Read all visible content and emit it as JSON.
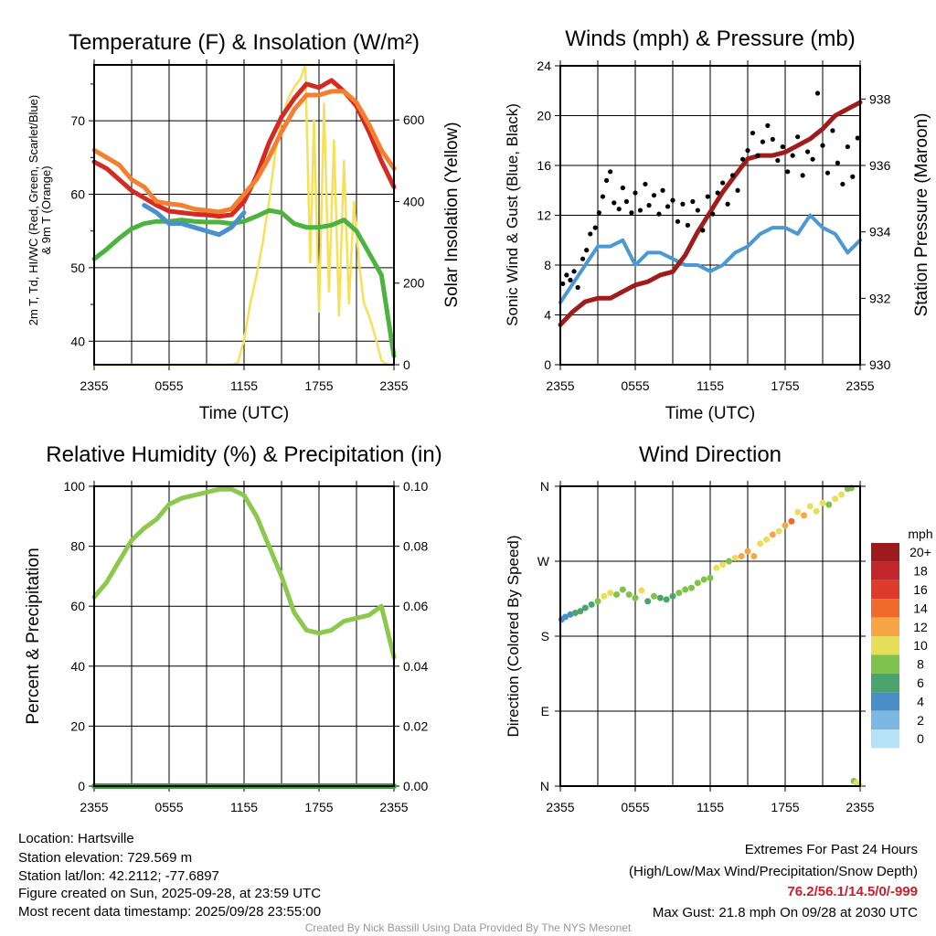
{
  "chart_data": [
    {
      "type": "line",
      "title": "Temperature (F) & Insolation (W/m²)",
      "xlabel": "Time (UTC)",
      "ylabel": "2m T, Td, HI/WC (Red, Green, Scarlet/Blue)",
      "ylabel2": "& 9m T (Orange)",
      "y2label": "Solar Insolation (Yellow)",
      "xticks": [
        "2355",
        "0555",
        "1155",
        "1755",
        "2355"
      ],
      "yticks": [
        70,
        60,
        50,
        40
      ],
      "y2ticks": [
        600,
        400,
        200,
        0
      ],
      "ylim": [
        36.8,
        77.6
      ],
      "y2lim": [
        0,
        735
      ],
      "x_hours": [
        0,
        1,
        2,
        3,
        4,
        5,
        6,
        7,
        8,
        9,
        10,
        11,
        12,
        13,
        14,
        15,
        16,
        17,
        18,
        19,
        20,
        21,
        22,
        23,
        24
      ],
      "series": [
        {
          "name": "2m T",
          "color": "#d42a24",
          "values": [
            64.4,
            63.5,
            62,
            60.5,
            59.5,
            58.5,
            57.7,
            57.5,
            57.3,
            57.2,
            57,
            57.2,
            59,
            62.5,
            67,
            70.5,
            73,
            75,
            74.5,
            75.5,
            74,
            72,
            68.5,
            64.5,
            61
          ]
        },
        {
          "name": "9m T",
          "color": "#f47f2f",
          "values": [
            66,
            65,
            64,
            62,
            61,
            59,
            58.7,
            58.5,
            58,
            57.8,
            57.6,
            58,
            60,
            62,
            65,
            68.5,
            71.5,
            73.5,
            73.5,
            74,
            74,
            72.5,
            69.5,
            66,
            63.5
          ]
        },
        {
          "name": "Td",
          "color": "#4cb33e",
          "values": [
            51.2,
            52.5,
            54,
            55.3,
            56,
            56.3,
            56.3,
            56.5,
            56.3,
            56.2,
            56.2,
            56,
            56.3,
            57,
            57.8,
            57.5,
            56,
            55.5,
            55.5,
            55.8,
            56.5,
            55,
            52,
            49,
            38
          ]
        },
        {
          "name": "HI/WC",
          "color": "#4a90cc",
          "values": [
            null,
            null,
            null,
            null,
            58.5,
            57.5,
            56,
            56,
            55.5,
            55,
            54.5,
            55.5,
            57.5,
            null,
            null,
            null,
            null,
            null,
            null,
            null,
            null,
            null,
            null,
            null,
            null
          ]
        }
      ],
      "solar": {
        "name": "Solar Insolation",
        "color": "#f6e05a",
        "x_hours": [
          0,
          11,
          11.5,
          12,
          12.5,
          13,
          13.5,
          14,
          14.5,
          15,
          15.5,
          16,
          16.5,
          16.9,
          17.3,
          17.6,
          18,
          18.4,
          18.8,
          19.2,
          19.6,
          20,
          20.4,
          20.8,
          21.2,
          21.6,
          22,
          22.5,
          23,
          23.5,
          24
        ],
        "values": [
          0,
          0,
          5,
          60,
          150,
          220,
          300,
          400,
          520,
          600,
          650,
          680,
          700,
          735,
          250,
          600,
          130,
          640,
          180,
          550,
          120,
          500,
          150,
          400,
          250,
          150,
          120,
          70,
          10,
          0,
          0
        ]
      }
    },
    {
      "type": "line",
      "title": "Winds (mph) & Pressure (mb)",
      "xlabel": "Time (UTC)",
      "ylabel": "Sonic Wind & Gust (Blue, Black)",
      "y2label": "Station Pressure (Maroon)",
      "xticks": [
        "2355",
        "0555",
        "1155",
        "1755",
        "2355"
      ],
      "yticks": [
        0,
        4,
        8,
        12,
        16,
        20,
        24
      ],
      "y2ticks": [
        930,
        932,
        934,
        936,
        938
      ],
      "ylim": [
        0,
        24
      ],
      "y2lim": [
        930,
        939
      ],
      "x_hours": [
        0,
        1,
        2,
        3,
        4,
        5,
        6,
        7,
        8,
        9,
        10,
        11,
        12,
        13,
        14,
        15,
        16,
        17,
        18,
        19,
        20,
        21,
        22,
        23,
        24
      ],
      "wind": {
        "name": "Sonic Wind",
        "color": "#4a98d4",
        "values": [
          5,
          6.5,
          8,
          9.5,
          9.5,
          10,
          8,
          9,
          9,
          8.5,
          8,
          8,
          7.5,
          8,
          9,
          9.5,
          10.5,
          11,
          11,
          10.5,
          12,
          11,
          10.5,
          9,
          10
        ]
      },
      "pressure": {
        "name": "Station Pressure",
        "color": "#a01c1c",
        "values": [
          931.2,
          931.6,
          931.9,
          932,
          932,
          932.2,
          932.4,
          932.5,
          932.7,
          932.8,
          933.3,
          934,
          934.6,
          935.2,
          935.7,
          936.2,
          936.3,
          936.3,
          936.4,
          936.6,
          936.8,
          937.1,
          937.5,
          937.7,
          937.9
        ]
      },
      "gust": {
        "name": "Gust",
        "color": "#000000",
        "points": [
          [
            0.2,
            6.5
          ],
          [
            0.5,
            7.2
          ],
          [
            0.8,
            6.8
          ],
          [
            1.1,
            7.5
          ],
          [
            1.4,
            6.2
          ],
          [
            1.8,
            8.5
          ],
          [
            2.1,
            9.2
          ],
          [
            2.4,
            10.5
          ],
          [
            2.8,
            11
          ],
          [
            3.1,
            12.2
          ],
          [
            3.4,
            13.5
          ],
          [
            3.7,
            14.8
          ],
          [
            4,
            15.5
          ],
          [
            4.3,
            13
          ],
          [
            4.7,
            12.5
          ],
          [
            5,
            14.2
          ],
          [
            5.3,
            13.1
          ],
          [
            5.7,
            12.2
          ],
          [
            6,
            13.8
          ],
          [
            6.4,
            12.4
          ],
          [
            6.8,
            14.5
          ],
          [
            7.1,
            12.8
          ],
          [
            7.5,
            13.6
          ],
          [
            7.9,
            12.1
          ],
          [
            8.2,
            14
          ],
          [
            8.6,
            12.7
          ],
          [
            9,
            13.2
          ],
          [
            9.4,
            11.5
          ],
          [
            9.8,
            12.9
          ],
          [
            10.2,
            11.2
          ],
          [
            10.6,
            13.1
          ],
          [
            11,
            12.4
          ],
          [
            11.4,
            10.8
          ],
          [
            11.8,
            13.5
          ],
          [
            12.2,
            12.1
          ],
          [
            12.6,
            13.8
          ],
          [
            13,
            14.6
          ],
          [
            13.4,
            12.9
          ],
          [
            13.8,
            15.2
          ],
          [
            14.2,
            14
          ],
          [
            14.6,
            16.5
          ],
          [
            15,
            17.2
          ],
          [
            15.4,
            18.6
          ],
          [
            15.8,
            16.8
          ],
          [
            16.2,
            17.9
          ],
          [
            16.6,
            19.2
          ],
          [
            17,
            18.1
          ],
          [
            17.4,
            16.4
          ],
          [
            17.8,
            17.5
          ],
          [
            18.2,
            15.5
          ],
          [
            18.6,
            16.8
          ],
          [
            19,
            18.3
          ],
          [
            19.4,
            15.2
          ],
          [
            19.8,
            17.1
          ],
          [
            20.2,
            16.5
          ],
          [
            20.6,
            21.8
          ],
          [
            21,
            17.6
          ],
          [
            21.4,
            15.4
          ],
          [
            21.8,
            18.8
          ],
          [
            22.2,
            16.2
          ],
          [
            22.6,
            14.5
          ],
          [
            23,
            17.5
          ],
          [
            23.4,
            15.1
          ],
          [
            23.8,
            18.2
          ]
        ]
      }
    },
    {
      "type": "line",
      "title": "Relative Humidity (%) & Precipitation (in)",
      "ylabel": "Percent & Precipitation",
      "xticks": [
        "2355",
        "0555",
        "1155",
        "1755",
        "2355"
      ],
      "yticks": [
        0,
        20,
        40,
        60,
        80,
        100
      ],
      "y2ticks": [
        "0.00",
        "0.02",
        "0.04",
        "0.06",
        "0.08",
        "0.10"
      ],
      "ylim": [
        0,
        100
      ],
      "y2lim": [
        0,
        0.1
      ],
      "x_hours": [
        0,
        1,
        2,
        3,
        4,
        5,
        6,
        7,
        8,
        9,
        10,
        11,
        12,
        13,
        14,
        15,
        16,
        17,
        18,
        19,
        20,
        21,
        22,
        23,
        24
      ],
      "rh": {
        "name": "Relative Humidity",
        "color": "#8cc84b",
        "values": [
          63,
          68,
          75,
          82,
          86,
          89,
          94,
          96,
          97,
          98,
          99,
          99,
          97,
          90,
          80,
          70,
          58,
          52,
          51,
          52,
          55,
          56,
          57,
          60,
          43
        ]
      },
      "precip": {
        "name": "Precipitation",
        "color": "#3a9a3a",
        "values": [
          0,
          0,
          0,
          0,
          0,
          0,
          0,
          0,
          0,
          0,
          0,
          0,
          0,
          0,
          0,
          0,
          0,
          0,
          0,
          0,
          0,
          0,
          0,
          0,
          0
        ]
      }
    },
    {
      "type": "scatter",
      "title": "Wind Direction",
      "ylabel": "Direction (Colored By Speed)",
      "xticks": [
        "2355",
        "0555",
        "1155",
        "1755",
        "2355"
      ],
      "yticks": [
        "N",
        "W",
        "S",
        "E",
        "N"
      ],
      "ylim": [
        0,
        360
      ],
      "points": [
        [
          0.1,
          200,
          4
        ],
        [
          0.4,
          203,
          4
        ],
        [
          0.8,
          206,
          5
        ],
        [
          1.2,
          208,
          6
        ],
        [
          1.6,
          210,
          6
        ],
        [
          2,
          214,
          7
        ],
        [
          2.5,
          218,
          7
        ],
        [
          3,
          222,
          9
        ],
        [
          3.5,
          228,
          10
        ],
        [
          4,
          232,
          10
        ],
        [
          4.5,
          230,
          8
        ],
        [
          5,
          236,
          9
        ],
        [
          5.5,
          230,
          8
        ],
        [
          6,
          226,
          9
        ],
        [
          6.5,
          235,
          10
        ],
        [
          7,
          222,
          7
        ],
        [
          7.5,
          228,
          8
        ],
        [
          8,
          226,
          7
        ],
        [
          8.5,
          224,
          7
        ],
        [
          9,
          228,
          7
        ],
        [
          9.5,
          232,
          8
        ],
        [
          10,
          236,
          8
        ],
        [
          10.5,
          238,
          9
        ],
        [
          11,
          244,
          8
        ],
        [
          11.5,
          248,
          9
        ],
        [
          12,
          250,
          9
        ],
        [
          12.5,
          262,
          11
        ],
        [
          13,
          266,
          10
        ],
        [
          13.5,
          270,
          8
        ],
        [
          14,
          274,
          10
        ],
        [
          14.5,
          276,
          12
        ],
        [
          15,
          282,
          12
        ],
        [
          15.5,
          276,
          13
        ],
        [
          16,
          291,
          11
        ],
        [
          16.5,
          296,
          10
        ],
        [
          17,
          302,
          12
        ],
        [
          17.5,
          306,
          11
        ],
        [
          18,
          313,
          13
        ],
        [
          18.5,
          318,
          14
        ],
        [
          19,
          329,
          10
        ],
        [
          19.5,
          325,
          12
        ],
        [
          20,
          336,
          10
        ],
        [
          20.5,
          330,
          11
        ],
        [
          21,
          340,
          10
        ],
        [
          21.5,
          338,
          9
        ],
        [
          22,
          345,
          10
        ],
        [
          22.5,
          350,
          11
        ],
        [
          23,
          357,
          9
        ],
        [
          23.3,
          358,
          8
        ],
        [
          23.5,
          6,
          8
        ],
        [
          23.7,
          4,
          10
        ],
        [
          23.9,
          2,
          11
        ]
      ]
    }
  ],
  "legend": {
    "unit": "mph",
    "labels": [
      "20+",
      "18",
      "16",
      "14",
      "12",
      "10",
      "8",
      "6",
      "4",
      "2",
      "0"
    ],
    "colors": [
      "#9b1b1e",
      "#c1262a",
      "#de3b2c",
      "#f06a2c",
      "#f8a645",
      "#e7df5a",
      "#7fc24b",
      "#4aa46b",
      "#4a8ec6",
      "#7db8e3",
      "#b6e2f7"
    ]
  },
  "info": {
    "location": "Location: Hartsville",
    "elevation": "Station elevation: 729.569 m",
    "latlon": "Station lat/lon: 42.2112; -77.6897",
    "created": "Figure created on Sun, 2025-09-28, at 23:59 UTC",
    "recent": "Most recent data timestamp: 2025/09/28 23:55:00",
    "extremes_title": "Extremes For Past 24 Hours",
    "extremes_sub": "(High/Low/Max Wind/Precipitation/Snow Depth)",
    "extremes_values": "76.2/56.1/14.5/0/-999",
    "max_gust": "Max Gust: 21.8 mph On 09/28 at 2030 UTC",
    "credit": "Created By Nick Bassill Using Data Provided By The NYS Mesonet"
  }
}
